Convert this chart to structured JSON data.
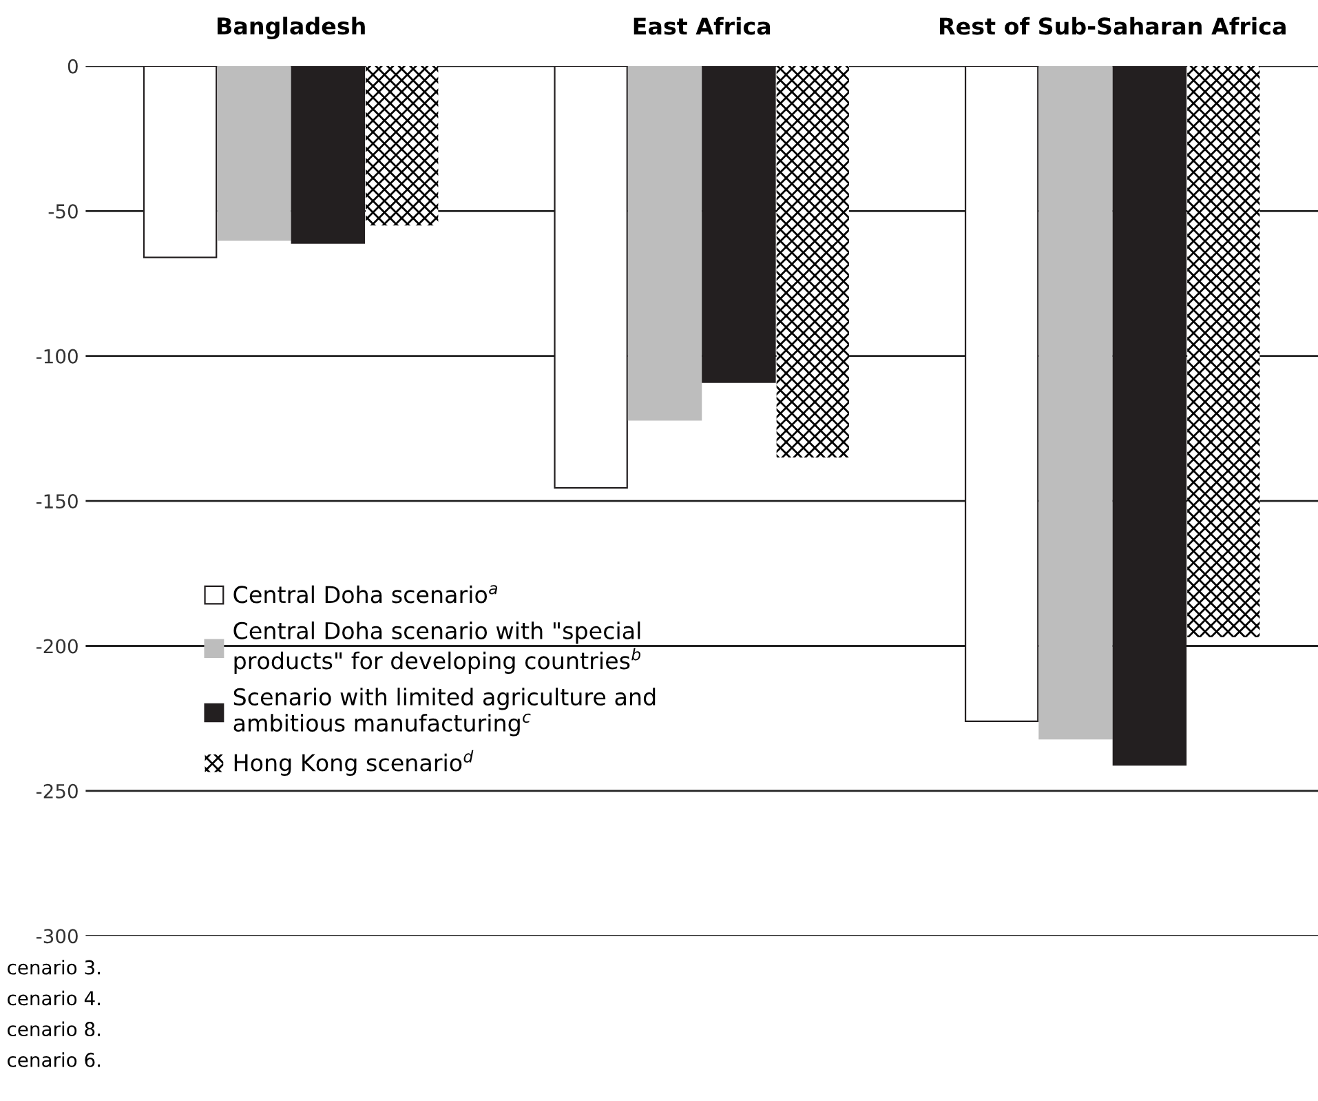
{
  "chart_data": {
    "type": "bar",
    "categories": [
      "Bangladesh",
      "East Africa",
      "Rest of Sub-Saharan Africa"
    ],
    "series": [
      {
        "name": "Central Doha scenario$^{a}$",
        "color": "#ffffff",
        "values": [
          -66,
          -145.5,
          -226
        ]
      },
      {
        "name": "Central Doha scenario with \"special\nproducts\" for developing countries$^{b}$",
        "color": "#bdbdbd",
        "values": [
          -60,
          -122,
          -232
        ]
      },
      {
        "name": "Scenario with limited agriculture and\nambitious manufacturing$^{c}$",
        "color": "#231f20",
        "values": [
          -61,
          -109,
          -241
        ]
      },
      {
        "name": "Hong Kong scenario$^{d}$",
        "color": "#000000",
        "values": [
          -55,
          -135,
          -197
        ]
      }
    ],
    "ylim": [
      -300,
      0
    ],
    "yticks": [
      -300,
      -250,
      -200,
      -150,
      -100,
      -50,
      0
    ],
    "grid": "y",
    "legend": "bottom left",
    "annotations": [
      "cenario 3.",
      "cenario 4.",
      "cenario 8.",
      "cenario 6."
    ]
  }
}
